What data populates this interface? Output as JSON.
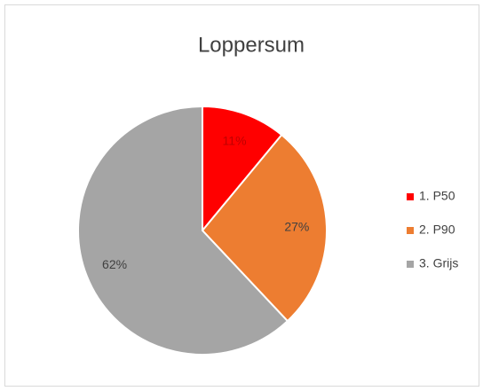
{
  "chart_data": {
    "type": "pie",
    "title": "Loppersum",
    "categories": [
      "1. P50",
      "2. P90",
      "3. Grijs"
    ],
    "values": [
      11,
      27,
      62
    ],
    "value_labels": [
      "11%",
      "27%",
      "62%"
    ],
    "colors": [
      "#ff0000",
      "#ed7d31",
      "#a5a5a5"
    ],
    "legend": "right"
  }
}
